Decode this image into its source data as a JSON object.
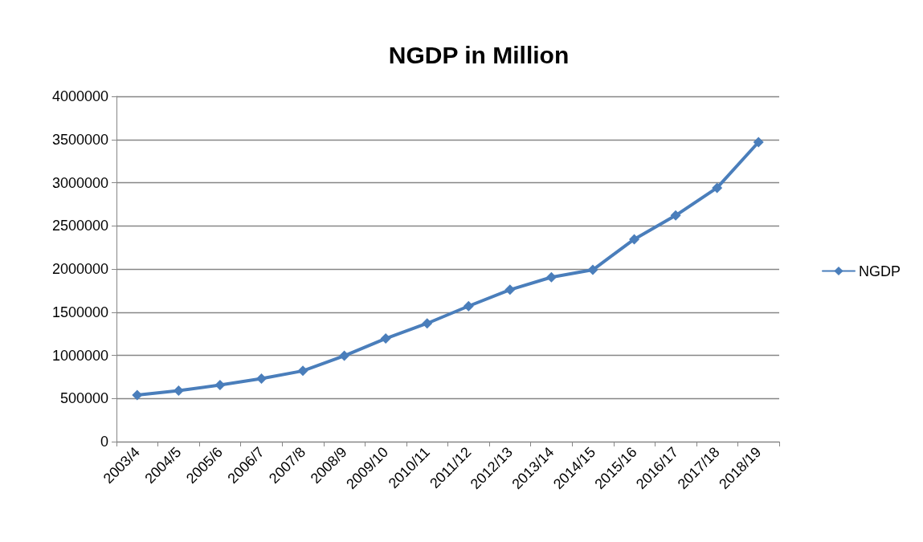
{
  "chart_data": {
    "type": "line",
    "title": "NGDP in Million",
    "categories": [
      "2003/4",
      "2004/5",
      "2005/6",
      "2006/7",
      "2007/8",
      "2008/9",
      "2009/10",
      "2010/11",
      "2011/12",
      "2012/13",
      "2013/14",
      "2014/15",
      "2015/16",
      "2016/17",
      "2017/18",
      "2018/19"
    ],
    "series": [
      {
        "name": "NGDP",
        "color": "#4a7ebb",
        "values": [
          540000,
          590000,
          655000,
          730000,
          820000,
          995000,
          1195000,
          1370000,
          1570000,
          1760000,
          1905000,
          1990000,
          2345000,
          2620000,
          2940000,
          3470000
        ]
      }
    ],
    "ylim": [
      0,
      4000000
    ],
    "yticks": [
      0,
      500000,
      1000000,
      1500000,
      2000000,
      2500000,
      3000000,
      3500000,
      4000000
    ],
    "grid": "y",
    "legend": "right",
    "marker": "diamond",
    "line_style": "solid"
  }
}
